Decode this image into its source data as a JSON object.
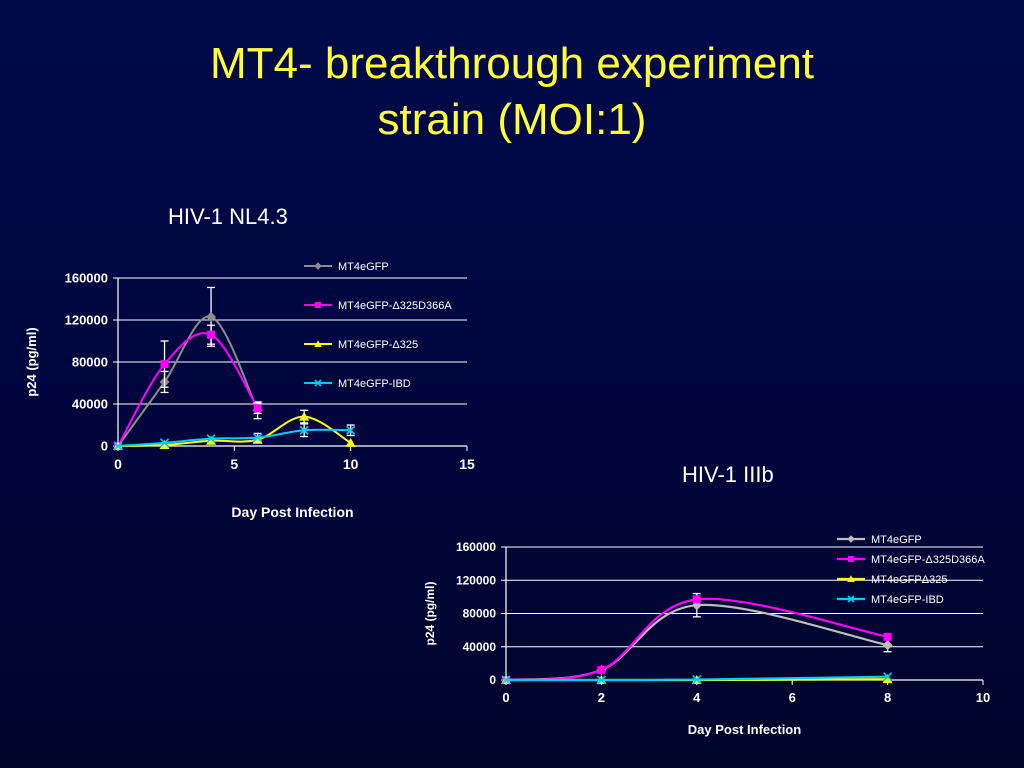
{
  "slide": {
    "title_line1": "MT4- breakthrough experiment",
    "title_line2": "strain (MOI:1)"
  },
  "colors": {
    "background": "#00073f",
    "title": "#ffff33",
    "text": "#ffffff",
    "series": [
      "#8c8c8c",
      "#ff00ff",
      "#ffff00",
      "#00ccff"
    ]
  },
  "chart_data": [
    {
      "type": "line",
      "title": "HIV-1 NL4.3",
      "xlabel": "Day Post Infection",
      "ylabel": "p24 (pg/ml)",
      "xlim": [
        0,
        15
      ],
      "ylim": [
        0,
        160000
      ],
      "xticks": [
        0,
        5,
        10,
        15
      ],
      "yticks": [
        0,
        40000,
        80000,
        120000,
        160000
      ],
      "grid": "horizontal",
      "legend": "right",
      "smooth": true,
      "series": [
        {
          "name": "MT4eGFP",
          "marker": "diamond",
          "color": "#8c8c8c",
          "x": [
            0,
            2,
            4,
            6
          ],
          "y": [
            0,
            61000,
            123000,
            34000
          ],
          "err": [
            0,
            10000,
            28000,
            8000
          ]
        },
        {
          "name": "MT4eGFP-Δ325D366A",
          "marker": "square",
          "color": "#ff00ff",
          "x": [
            0,
            2,
            4,
            6
          ],
          "y": [
            0,
            78000,
            106000,
            36000
          ],
          "err": [
            0,
            22000,
            9000,
            5000
          ]
        },
        {
          "name": "MT4eGFP-Δ325",
          "marker": "triangle",
          "color": "#ffff00",
          "x": [
            0,
            2,
            4,
            6,
            8,
            10
          ],
          "y": [
            0,
            1000,
            5000,
            6000,
            28000,
            3000
          ],
          "err": [
            0,
            0,
            0,
            0,
            6000,
            0
          ]
        },
        {
          "name": "MT4eGFP-IBD",
          "marker": "x",
          "color": "#00ccff",
          "x": [
            0,
            2,
            4,
            6,
            8,
            10
          ],
          "y": [
            0,
            3000,
            7000,
            8000,
            15000,
            15000
          ],
          "err": [
            0,
            0,
            0,
            4000,
            6000,
            5000
          ]
        }
      ]
    },
    {
      "type": "line",
      "title": "HIV-1 IIIb",
      "xlabel": "Day Post Infection",
      "ylabel": "p24 (pg/ml)",
      "xlim": [
        0,
        10
      ],
      "ylim": [
        0,
        160000
      ],
      "xticks": [
        0,
        2,
        4,
        6,
        8,
        10
      ],
      "yticks": [
        0,
        40000,
        80000,
        120000,
        160000
      ],
      "grid": "horizontal",
      "legend": "top-right",
      "smooth": true,
      "series": [
        {
          "name": "MT4eGFP",
          "marker": "diamond",
          "color": "#bdbdbd",
          "x": [
            0,
            2,
            4,
            8
          ],
          "y": [
            0,
            12000,
            90000,
            42000
          ],
          "err": [
            0,
            0,
            14000,
            8000
          ]
        },
        {
          "name": "MT4eGFP-Δ325D366A",
          "marker": "square",
          "color": "#ff00ff",
          "x": [
            0,
            2,
            4,
            8
          ],
          "y": [
            0,
            12000,
            97000,
            52000
          ],
          "err": [
            0,
            0,
            0,
            0
          ]
        },
        {
          "name": "MT4eGFPΔ325",
          "marker": "triangle",
          "color": "#ffff00",
          "x": [
            0,
            2,
            4,
            8
          ],
          "y": [
            0,
            0,
            0,
            1000
          ],
          "err": [
            0,
            0,
            0,
            0
          ]
        },
        {
          "name": "MT4eGFP-IBD",
          "marker": "x",
          "color": "#00ccff",
          "x": [
            0,
            2,
            4,
            8
          ],
          "y": [
            0,
            0,
            500,
            4000
          ],
          "err": [
            0,
            0,
            0,
            0
          ]
        }
      ]
    }
  ]
}
